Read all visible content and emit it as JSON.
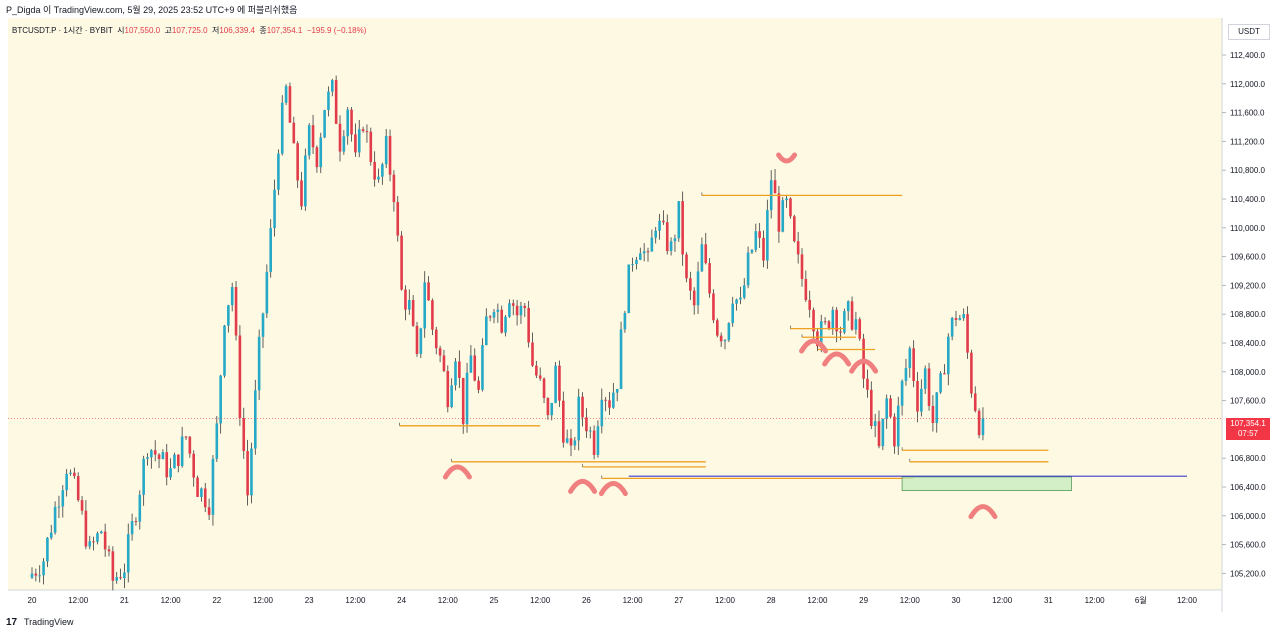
{
  "header": {
    "title": "P_Digda 이 TradingView.com, 5월 29, 2025 23:52 UTC+9 에 퍼블리쉬했음"
  },
  "legend": {
    "symbol": "BTCUSDT.P · 1시간 · BYBIT",
    "open_label": "시",
    "open": "107,550.0",
    "high_label": "고",
    "high": "107,725.0",
    "low_label": "저",
    "low": "106,339.4",
    "close_label": "종",
    "close": "107,354.1",
    "change": "−195.9 (−0.18%)"
  },
  "price_scale": {
    "currency": "USDT",
    "current_price": "107,354.1",
    "countdown": "07:57"
  },
  "footer": {
    "logo": "17",
    "brand": "TradingView"
  },
  "colors": {
    "background": "#fdf9e3",
    "up": "#26a9c7",
    "down": "#e23b4a",
    "level": "#f0a020",
    "support_line": "#3c3ccf",
    "zone_fill": "#c8ecc0",
    "marker": "#f08080"
  },
  "chart_data": {
    "type": "candlestick",
    "title": "BTCUSDT.P · 1시간 · BYBIT",
    "ylim": [
      105000,
      112800
    ],
    "y_ticks": [
      {
        "label": "112,400.0",
        "value": 112400
      },
      {
        "label": "112,000.0",
        "value": 112000
      },
      {
        "label": "111,600.0",
        "value": 111600
      },
      {
        "label": "111,200.0",
        "value": 111200
      },
      {
        "label": "110,800.0",
        "value": 110800
      },
      {
        "label": "110,400.0",
        "value": 110400
      },
      {
        "label": "110,000.0",
        "value": 110000
      },
      {
        "label": "109,600.0",
        "value": 109600
      },
      {
        "label": "109,200.0",
        "value": 109200
      },
      {
        "label": "108,800.0",
        "value": 108800
      },
      {
        "label": "108,400.0",
        "value": 108400
      },
      {
        "label": "108,000.0",
        "value": 108000
      },
      {
        "label": "107,600.0",
        "value": 107600
      },
      {
        "label": "106,800.0",
        "value": 106800
      },
      {
        "label": "106,400.0",
        "value": 106400
      },
      {
        "label": "106,000.0",
        "value": 106000
      },
      {
        "label": "105,600.0",
        "value": 105600
      },
      {
        "label": "105,200.0",
        "value": 105200
      }
    ],
    "x_ticks": [
      {
        "label": "20",
        "t": 0
      },
      {
        "label": "12:00",
        "t": 12
      },
      {
        "label": "21",
        "t": 24
      },
      {
        "label": "12:00",
        "t": 36
      },
      {
        "label": "22",
        "t": 48
      },
      {
        "label": "12:00",
        "t": 60
      },
      {
        "label": "23",
        "t": 72
      },
      {
        "label": "12:00",
        "t": 84
      },
      {
        "label": "24",
        "t": 96
      },
      {
        "label": "12:00",
        "t": 108
      },
      {
        "label": "25",
        "t": 120
      },
      {
        "label": "12:00",
        "t": 132
      },
      {
        "label": "26",
        "t": 144
      },
      {
        "label": "12:00",
        "t": 156
      },
      {
        "label": "27",
        "t": 168
      },
      {
        "label": "12:00",
        "t": 180
      },
      {
        "label": "28",
        "t": 192
      },
      {
        "label": "12:00",
        "t": 204
      },
      {
        "label": "29",
        "t": 216
      },
      {
        "label": "12:00",
        "t": 228
      },
      {
        "label": "30",
        "t": 240
      },
      {
        "label": "12:00",
        "t": 252
      },
      {
        "label": "31",
        "t": 264
      },
      {
        "label": "12:00",
        "t": 276
      },
      {
        "label": "6월",
        "t": 288
      },
      {
        "label": "12:00",
        "t": 300
      }
    ],
    "last_price": 107354.1,
    "path": [
      [
        0,
        105200
      ],
      [
        3,
        105400
      ],
      [
        6,
        106100
      ],
      [
        9,
        106700
      ],
      [
        12,
        106200
      ],
      [
        15,
        105500
      ],
      [
        18,
        105800
      ],
      [
        21,
        105100
      ],
      [
        24,
        105300
      ],
      [
        27,
        106100
      ],
      [
        30,
        107000
      ],
      [
        33,
        106800
      ],
      [
        36,
        106600
      ],
      [
        40,
        107100
      ],
      [
        43,
        106400
      ],
      [
        46,
        106200
      ],
      [
        48,
        107200
      ],
      [
        50,
        108800
      ],
      [
        52,
        109200
      ],
      [
        54,
        107500
      ],
      [
        56,
        106300
      ],
      [
        59,
        108300
      ],
      [
        62,
        109900
      ],
      [
        64,
        111200
      ],
      [
        66,
        111900
      ],
      [
        68,
        111000
      ],
      [
        70,
        110400
      ],
      [
        72,
        111300
      ],
      [
        74,
        111000
      ],
      [
        76,
        111700
      ],
      [
        78,
        111900
      ],
      [
        80,
        111200
      ],
      [
        82,
        111700
      ],
      [
        84,
        110900
      ],
      [
        86,
        111500
      ],
      [
        88,
        111000
      ],
      [
        90,
        110600
      ],
      [
        92,
        111100
      ],
      [
        94,
        110500
      ],
      [
        96,
        109100
      ],
      [
        98,
        108900
      ],
      [
        100,
        108100
      ],
      [
        102,
        109300
      ],
      [
        104,
        108600
      ],
      [
        106,
        108200
      ],
      [
        108,
        107700
      ],
      [
        110,
        108300
      ],
      [
        112,
        107400
      ],
      [
        114,
        108200
      ],
      [
        116,
        107700
      ],
      [
        118,
        108700
      ],
      [
        120,
        109000
      ],
      [
        122,
        108700
      ],
      [
        124,
        109100
      ],
      [
        126,
        108800
      ],
      [
        128,
        108900
      ],
      [
        130,
        108100
      ],
      [
        132,
        107800
      ],
      [
        134,
        107300
      ],
      [
        136,
        108000
      ],
      [
        138,
        107200
      ],
      [
        140,
        106800
      ],
      [
        142,
        107500
      ],
      [
        144,
        107300
      ],
      [
        146,
        107000
      ],
      [
        148,
        107800
      ],
      [
        150,
        107600
      ],
      [
        152,
        107900
      ],
      [
        154,
        109000
      ],
      [
        156,
        109600
      ],
      [
        158,
        109800
      ],
      [
        160,
        109500
      ],
      [
        162,
        110100
      ],
      [
        164,
        109900
      ],
      [
        166,
        109700
      ],
      [
        168,
        110200
      ],
      [
        170,
        109200
      ],
      [
        172,
        108900
      ],
      [
        174,
        109700
      ],
      [
        176,
        109100
      ],
      [
        178,
        108600
      ],
      [
        180,
        108500
      ],
      [
        182,
        109100
      ],
      [
        184,
        108900
      ],
      [
        186,
        109500
      ],
      [
        188,
        109900
      ],
      [
        190,
        109600
      ],
      [
        192,
        110700
      ],
      [
        194,
        110100
      ],
      [
        196,
        110300
      ],
      [
        198,
        109700
      ],
      [
        200,
        109300
      ],
      [
        202,
        109000
      ],
      [
        204,
        108500
      ],
      [
        206,
        108600
      ],
      [
        208,
        108900
      ],
      [
        210,
        108600
      ],
      [
        212,
        108800
      ],
      [
        214,
        108700
      ],
      [
        216,
        107900
      ],
      [
        218,
        107400
      ],
      [
        220,
        106900
      ],
      [
        222,
        107600
      ],
      [
        224,
        107100
      ],
      [
        226,
        107800
      ],
      [
        228,
        108300
      ],
      [
        230,
        107600
      ],
      [
        232,
        108000
      ],
      [
        234,
        107300
      ],
      [
        236,
        107800
      ],
      [
        238,
        108500
      ],
      [
        240,
        108800
      ],
      [
        242,
        108700
      ],
      [
        244,
        107800
      ],
      [
        246,
        107300
      ],
      [
        247,
        107354.1
      ]
    ],
    "annotations": {
      "levels": [
        {
          "t1": 95.5,
          "t2": 132,
          "price": 107250
        },
        {
          "t1": 109,
          "t2": 175,
          "price": 106750
        },
        {
          "t1": 143,
          "t2": 175,
          "price": 106680
        },
        {
          "t1": 148,
          "t2": 229,
          "price": 106520
        },
        {
          "t1": 174,
          "t2": 226,
          "price": 110450
        },
        {
          "t1": 197,
          "t2": 211,
          "price": 108600
        },
        {
          "t1": 200,
          "t2": 214,
          "price": 108480
        },
        {
          "t1": 204,
          "t2": 219,
          "price": 108310
        },
        {
          "t1": 226,
          "t2": 264,
          "price": 106910
        },
        {
          "t1": 228,
          "t2": 264,
          "price": 106750
        }
      ],
      "support_line": {
        "t1": 155,
        "t2": 300,
        "price": 106550
      },
      "zone": {
        "t1": 226,
        "t2": 270,
        "price_top": 106540,
        "price_bottom": 106350
      },
      "markers": [
        {
          "t": 110.5,
          "price": 106650,
          "shape": "cap"
        },
        {
          "t": 143,
          "price": 106450,
          "shape": "cap"
        },
        {
          "t": 151,
          "price": 106420,
          "shape": "cap"
        },
        {
          "t": 196,
          "price": 110900,
          "shape": "cup"
        },
        {
          "t": 203,
          "price": 108400,
          "shape": "cap"
        },
        {
          "t": 209,
          "price": 108220,
          "shape": "cap"
        },
        {
          "t": 216,
          "price": 108120,
          "shape": "cap"
        },
        {
          "t": 247,
          "price": 106100,
          "shape": "cap"
        }
      ]
    }
  }
}
